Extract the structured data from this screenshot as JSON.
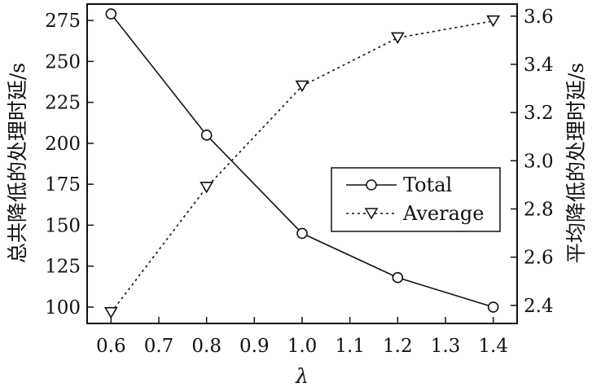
{
  "chart_data": {
    "type": "line",
    "title": "",
    "xlabel": "λ",
    "ylabel_left": "总共降低的处理时延/s",
    "ylabel_right": "平均降低的处理时延/s",
    "x": [
      0.6,
      0.8,
      1.0,
      1.2,
      1.4
    ],
    "xlim": [
      0.55,
      1.45
    ],
    "x_ticks": [
      "0.6",
      "0.7",
      "0.8",
      "0.9",
      "1.0",
      "1.1",
      "1.2",
      "1.3",
      "1.4"
    ],
    "ylim_left": [
      90,
      285
    ],
    "y_ticks_left": [
      "100",
      "125",
      "150",
      "175",
      "200",
      "225",
      "250",
      "275"
    ],
    "ylim_right": [
      2.325,
      3.65
    ],
    "y_ticks_right": [
      "2.4",
      "2.6",
      "2.8",
      "3.0",
      "3.2",
      "3.4",
      "3.6"
    ],
    "legend_position": "center-right",
    "grid": false,
    "series": [
      {
        "name": "Total",
        "axis": "left",
        "marker": "circle",
        "line_style": "solid",
        "color": "#111111",
        "values": [
          279,
          205,
          145,
          118,
          100
        ]
      },
      {
        "name": "Average",
        "axis": "right",
        "marker": "triangle-down",
        "line_style": "dotted",
        "color": "#111111",
        "values": [
          2.37,
          2.89,
          3.31,
          3.51,
          3.58
        ]
      }
    ]
  }
}
